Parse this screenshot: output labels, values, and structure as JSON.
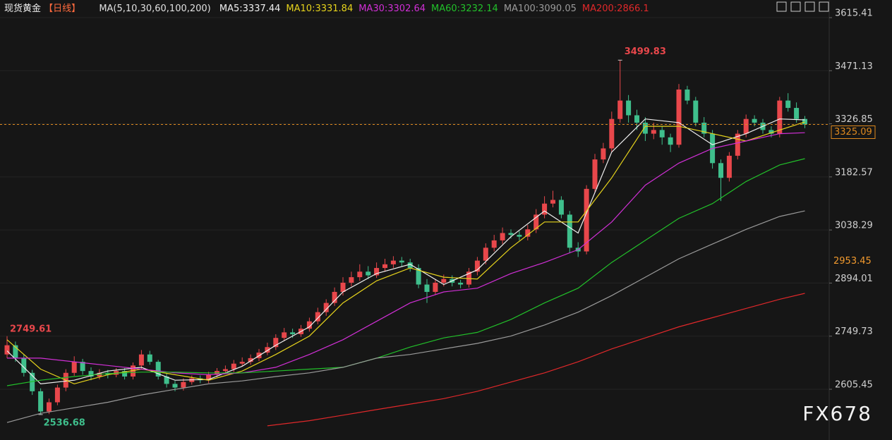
{
  "chart_data": {
    "type": "candlestick",
    "title": "现货黄金",
    "period": "【日线】",
    "ma_params": "MA(5,10,30,60,100,200)",
    "up_color": "#e8474b",
    "down_color": "#3fbf8c",
    "ylim": [
      2467.5,
      3663.3
    ],
    "yticks": [
      3615.41,
      3471.13,
      {
        "value": 3326.85,
        "label": "3326.85"
      },
      3182.57,
      3038.29,
      2894.01,
      2749.73,
      2605.45
    ],
    "grid": true,
    "marker_price": 2953.45,
    "watermark": "FX678",
    "open": [
      2700,
      2725,
      2690,
      2650,
      2600,
      2545,
      2570,
      2610,
      2650,
      2680,
      2655,
      2640,
      2650,
      2645,
      2655,
      2640,
      2670,
      2700,
      2680,
      2640,
      2620,
      2610,
      2625,
      2635,
      2630,
      2645,
      2655,
      2660,
      2675,
      2680,
      2690,
      2705,
      2720,
      2745,
      2760,
      2755,
      2770,
      2790,
      2815,
      2840,
      2870,
      2895,
      2910,
      2925,
      2915,
      2935,
      2945,
      2955,
      2950,
      2935,
      2890,
      2870,
      2895,
      2905,
      2895,
      2890,
      2925,
      2955,
      2990,
      3010,
      3030,
      3025,
      3020,
      3040,
      3080,
      3110,
      3120,
      3080,
      2990,
      2980,
      3150,
      3230,
      3260,
      3340,
      3390,
      3350,
      3330,
      3300,
      3310,
      3290,
      3270,
      3420,
      3390,
      3330,
      3300,
      3220,
      3180,
      3240,
      3300,
      3340,
      3330,
      3310,
      3300,
      3390,
      3370,
      3340
    ],
    "high": [
      2749.61,
      2735,
      2700,
      2658,
      2608,
      2580,
      2618,
      2660,
      2695,
      2688,
      2665,
      2660,
      2658,
      2663,
      2663,
      2678,
      2712,
      2710,
      2685,
      2648,
      2628,
      2635,
      2643,
      2643,
      2653,
      2663,
      2670,
      2685,
      2692,
      2700,
      2715,
      2732,
      2755,
      2772,
      2770,
      2780,
      2800,
      2827,
      2850,
      2882,
      2910,
      2925,
      2945,
      2940,
      2950,
      2960,
      2967,
      2965,
      2960,
      2945,
      2905,
      2905,
      2917,
      2915,
      2903,
      2935,
      2965,
      3002,
      3025,
      3045,
      3040,
      3035,
      3052,
      3095,
      3130,
      3145,
      3130,
      3090,
      3005,
      3160,
      3245,
      3275,
      3360,
      3499.83,
      3405,
      3365,
      3345,
      3330,
      3320,
      3300,
      3435,
      3430,
      3400,
      3345,
      3310,
      3230,
      3250,
      3310,
      3352,
      3350,
      3340,
      3320,
      3400,
      3410,
      3385,
      3348
    ],
    "low": [
      2690,
      2680,
      2640,
      2590,
      2536.68,
      2538,
      2562,
      2600,
      2642,
      2645,
      2630,
      2632,
      2635,
      2638,
      2632,
      2632,
      2660,
      2672,
      2632,
      2610,
      2600,
      2602,
      2618,
      2622,
      2622,
      2638,
      2648,
      2652,
      2668,
      2672,
      2682,
      2698,
      2712,
      2738,
      2745,
      2748,
      2762,
      2782,
      2805,
      2832,
      2860,
      2885,
      2900,
      2905,
      2908,
      2925,
      2935,
      2940,
      2925,
      2880,
      2840,
      2862,
      2885,
      2885,
      2880,
      2882,
      2915,
      2945,
      2980,
      3000,
      3015,
      3010,
      3010,
      3030,
      3070,
      3100,
      3070,
      2975,
      2965,
      2972,
      3140,
      3220,
      3250,
      3330,
      3330,
      3310,
      3280,
      3285,
      3270,
      3250,
      3262,
      3380,
      3320,
      3290,
      3205,
      3117,
      3170,
      3230,
      3290,
      3320,
      3300,
      3290,
      3290,
      3360,
      3330,
      3315
    ],
    "close": [
      2725,
      2690,
      2650,
      2600,
      2545,
      2570,
      2610,
      2650,
      2680,
      2655,
      2640,
      2650,
      2645,
      2655,
      2640,
      2670,
      2700,
      2680,
      2640,
      2620,
      2610,
      2625,
      2635,
      2630,
      2645,
      2655,
      2660,
      2675,
      2680,
      2690,
      2705,
      2720,
      2745,
      2760,
      2755,
      2770,
      2790,
      2815,
      2840,
      2870,
      2895,
      2910,
      2925,
      2915,
      2935,
      2945,
      2955,
      2950,
      2935,
      2890,
      2870,
      2895,
      2905,
      2895,
      2890,
      2925,
      2955,
      2990,
      3010,
      3030,
      3025,
      3020,
      3040,
      3080,
      3110,
      3120,
      3080,
      2990,
      2980,
      3150,
      3230,
      3260,
      3340,
      3390,
      3350,
      3330,
      3300,
      3310,
      3290,
      3270,
      3420,
      3390,
      3330,
      3300,
      3220,
      3180,
      3240,
      3300,
      3340,
      3330,
      3310,
      3300,
      3390,
      3370,
      3340,
      3325.09
    ],
    "ma_series": [
      {
        "name": "MA5:3337.44",
        "color": "#f0f0f0",
        "x": [
          0,
          4,
          8,
          12,
          16,
          20,
          24,
          28,
          32,
          36,
          40,
          44,
          48,
          52,
          56,
          60,
          64,
          68,
          72,
          76,
          80,
          84,
          88,
          92,
          95
        ],
        "values": [
          2710,
          2620,
          2630,
          2655,
          2665,
          2630,
          2632,
          2668,
          2725,
          2775,
          2870,
          2920,
          2945,
          2890,
          2930,
          3020,
          3090,
          3030,
          3250,
          3340,
          3330,
          3270,
          3300,
          3340,
          3337.44
        ]
      },
      {
        "name": "MA10:3331.84",
        "color": "#e6d31c",
        "x": [
          0,
          4,
          8,
          12,
          16,
          20,
          24,
          28,
          32,
          36,
          40,
          44,
          48,
          52,
          56,
          60,
          64,
          68,
          72,
          76,
          80,
          84,
          88,
          92,
          95
        ],
        "values": [
          2740,
          2660,
          2620,
          2645,
          2660,
          2645,
          2630,
          2655,
          2700,
          2750,
          2840,
          2900,
          2935,
          2910,
          2905,
          2990,
          3060,
          3060,
          3180,
          3320,
          3320,
          3300,
          3280,
          3310,
          3331.84
        ]
      },
      {
        "name": "MA30:3302.64",
        "color": "#d12fd6",
        "x": [
          0,
          4,
          8,
          12,
          16,
          20,
          24,
          28,
          32,
          36,
          40,
          44,
          48,
          52,
          56,
          60,
          64,
          68,
          72,
          76,
          80,
          84,
          88,
          92,
          95
        ],
        "values": [
          2690,
          2690,
          2680,
          2670,
          2660,
          2650,
          2645,
          2650,
          2665,
          2700,
          2740,
          2790,
          2840,
          2870,
          2880,
          2920,
          2950,
          2985,
          3060,
          3160,
          3220,
          3260,
          3280,
          3300,
          3302.64
        ]
      },
      {
        "name": "MA60:3232.14",
        "color": "#22c02a",
        "x": [
          0,
          4,
          8,
          12,
          16,
          20,
          24,
          28,
          32,
          36,
          40,
          44,
          48,
          52,
          56,
          60,
          64,
          68,
          72,
          76,
          80,
          84,
          88,
          92,
          95
        ],
        "values": [
          2615,
          2630,
          2640,
          2648,
          2652,
          2652,
          2650,
          2650,
          2655,
          2660,
          2665,
          2690,
          2720,
          2745,
          2760,
          2795,
          2840,
          2880,
          2950,
          3010,
          3070,
          3110,
          3170,
          3215,
          3232.14
        ]
      },
      {
        "name": "MA100:3090.05",
        "color": "#9a9a9a",
        "x": [
          0,
          4,
          8,
          12,
          16,
          20,
          24,
          28,
          32,
          36,
          40,
          44,
          48,
          52,
          56,
          60,
          64,
          68,
          72,
          76,
          80,
          84,
          88,
          92,
          95
        ],
        "values": [
          2515,
          2540,
          2555,
          2570,
          2590,
          2605,
          2620,
          2628,
          2640,
          2650,
          2665,
          2690,
          2700,
          2715,
          2730,
          2750,
          2780,
          2815,
          2860,
          2910,
          2960,
          3000,
          3040,
          3075,
          3090.05
        ]
      },
      {
        "name": "MA200:2866.1",
        "color": "#e0282a",
        "x": [
          31,
          36,
          40,
          44,
          48,
          52,
          56,
          60,
          64,
          68,
          72,
          76,
          80,
          84,
          88,
          92,
          95
        ],
        "values": [
          2506,
          2520,
          2535,
          2550,
          2565,
          2580,
          2600,
          2625,
          2650,
          2680,
          2715,
          2745,
          2775,
          2800,
          2825,
          2850,
          2866.1
        ]
      }
    ]
  }
}
